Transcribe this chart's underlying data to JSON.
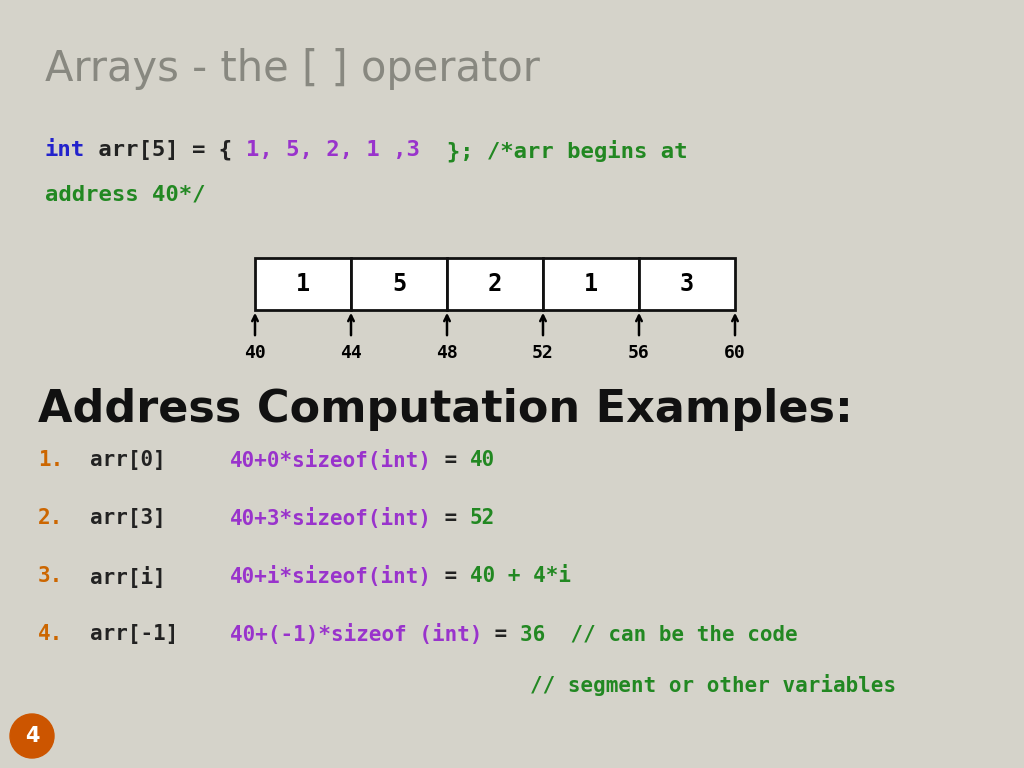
{
  "title": "Arrays - the [ ] operator",
  "bg_color": "#d5d3ca",
  "title_color": "#888880",
  "title_fontsize": 30,
  "line1_segments": [
    {
      "text": "int",
      "color": "#2222cc"
    },
    {
      "text": " arr[5] = { ",
      "color": "#222222"
    },
    {
      "text": "1, 5, 2, 1 ,3",
      "color": "#9933cc"
    },
    {
      "text": "  }; /*arr begins at",
      "color": "#228822"
    }
  ],
  "code_line2": "address 40*/",
  "code_line2_color": "#228822",
  "array_values": [
    "1",
    "5",
    "2",
    "1",
    "3"
  ],
  "array_addresses": [
    "40",
    "44",
    "48",
    "52",
    "56",
    "60"
  ],
  "section_title": "Address Computation Examples:",
  "section_title_color": "#111111",
  "section_title_fontsize": 32,
  "examples": [
    {
      "num": "1.",
      "arr": "arr[0]",
      "formula": "40+0*sizeof(int)",
      "eq": " = ",
      "result": "40"
    },
    {
      "num": "2.",
      "arr": "arr[3]",
      "formula": "40+3*sizeof(int)",
      "eq": " = ",
      "result": "52"
    },
    {
      "num": "3.",
      "arr": "arr[i]",
      "formula": "40+i*sizeof(int)",
      "eq": " = ",
      "result": "40 + 4*i"
    },
    {
      "num": "4.",
      "arr": "arr[-1]",
      "formula": "40+(-1)*sizeof (int)",
      "eq": " = ",
      "result": "36  // can be the code"
    }
  ],
  "last_line": "// segment or other variables",
  "last_line_color": "#228822",
  "num_color": "#cc6600",
  "arr_color": "#222222",
  "formula_color": "#9933cc",
  "result_color": "#228822",
  "page_num": "4",
  "page_num_color": "#cc5500",
  "mono_fs": 16,
  "example_fs": 15
}
